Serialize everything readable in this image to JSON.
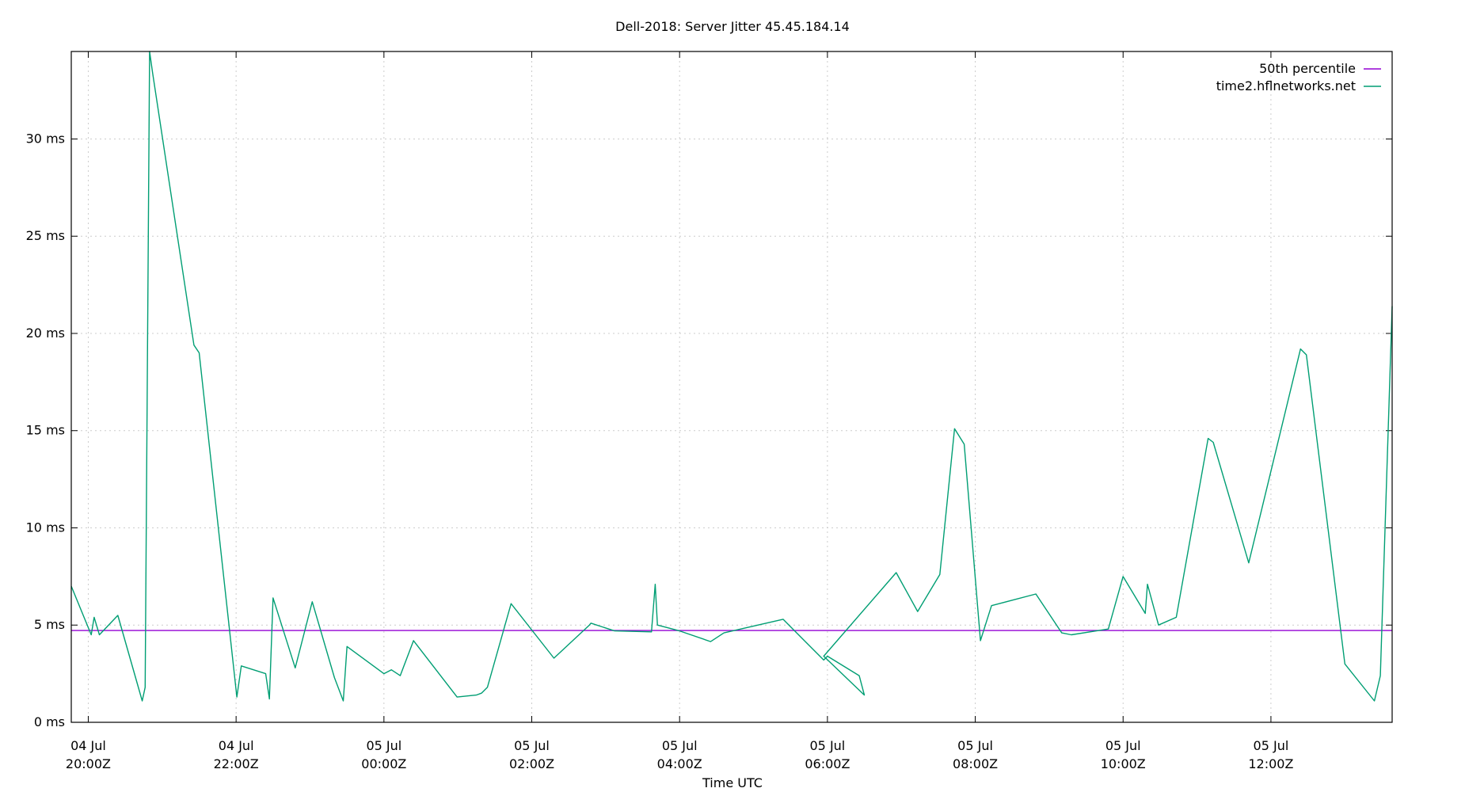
{
  "chart_data": {
    "type": "line",
    "title": "Dell-2018: Server Jitter 45.45.184.14",
    "xlabel": "Time UTC",
    "ylabel": "",
    "x_unit": "hours since 04 Jul 20:00Z",
    "xlim": [
      -0.23,
      17.64
    ],
    "ylim": [
      0,
      34.5
    ],
    "grid": true,
    "legend_position": "top-right",
    "y_ticks": [
      {
        "value": 0,
        "label": "0 ms"
      },
      {
        "value": 5,
        "label": "5 ms"
      },
      {
        "value": 10,
        "label": "10 ms"
      },
      {
        "value": 15,
        "label": "15 ms"
      },
      {
        "value": 20,
        "label": "20 ms"
      },
      {
        "value": 25,
        "label": "25 ms"
      },
      {
        "value": 30,
        "label": "30 ms"
      }
    ],
    "x_ticks": [
      {
        "value": 0,
        "line1": "04 Jul",
        "line2": "20:00Z"
      },
      {
        "value": 2,
        "line1": "04 Jul",
        "line2": "22:00Z"
      },
      {
        "value": 4,
        "line1": "05 Jul",
        "line2": "00:00Z"
      },
      {
        "value": 6,
        "line1": "05 Jul",
        "line2": "02:00Z"
      },
      {
        "value": 8,
        "line1": "05 Jul",
        "line2": "04:00Z"
      },
      {
        "value": 10,
        "line1": "05 Jul",
        "line2": "06:00Z"
      },
      {
        "value": 12,
        "line1": "05 Jul",
        "line2": "08:00Z"
      },
      {
        "value": 14,
        "line1": "05 Jul",
        "line2": "10:00Z"
      },
      {
        "value": 16,
        "line1": "05 Jul",
        "line2": "12:00Z"
      }
    ],
    "series": [
      {
        "name": "50th percentile",
        "color": "#9400d3",
        "x": [
          -0.23,
          17.64
        ],
        "y": [
          4.72,
          4.72
        ]
      },
      {
        "name": "time2.hflnetworks.net",
        "color": "#009e73",
        "x": [
          -0.23,
          0.04,
          0.08,
          0.15,
          0.4,
          0.73,
          0.77,
          0.83,
          0.87,
          1.43,
          1.5,
          2.01,
          2.07,
          2.4,
          2.45,
          2.5,
          2.8,
          3.03,
          3.33,
          3.45,
          3.5,
          4.0,
          4.1,
          4.22,
          4.4,
          4.99,
          5.25,
          5.32,
          5.4,
          5.72,
          6.3,
          6.78,
          6.8,
          7.12,
          7.62,
          7.67,
          7.7,
          8.0,
          8.42,
          8.6,
          9.4,
          9.95,
          10.0,
          10.43,
          10.5,
          9.95,
          10.93,
          11.22,
          11.52,
          11.72,
          11.85,
          12.07,
          12.22,
          12.82,
          13.17,
          13.3,
          13.8,
          14.0,
          14.3,
          14.33,
          14.48,
          14.72,
          15.15,
          15.22,
          15.7,
          16.4,
          16.48,
          17.0,
          17.4,
          17.48,
          17.64
        ],
        "y": [
          7.0,
          4.5,
          5.4,
          4.5,
          5.5,
          1.1,
          1.8,
          34.5,
          33.4,
          19.4,
          19.0,
          1.3,
          2.9,
          2.5,
          1.2,
          6.4,
          2.8,
          6.2,
          2.3,
          1.1,
          3.9,
          2.5,
          2.7,
          2.4,
          4.2,
          1.3,
          1.4,
          1.5,
          1.8,
          6.1,
          3.3,
          5.0,
          5.1,
          4.7,
          4.65,
          7.1,
          5.0,
          4.7,
          4.15,
          4.6,
          5.3,
          3.2,
          3.4,
          2.4,
          1.4,
          3.4,
          7.7,
          5.7,
          7.6,
          15.1,
          14.3,
          4.2,
          6.0,
          6.6,
          4.6,
          4.5,
          4.8,
          7.5,
          5.6,
          7.1,
          5.0,
          5.4,
          14.6,
          14.4,
          8.2,
          19.2,
          18.9,
          3.0,
          1.1,
          2.4,
          21.4
        ]
      }
    ]
  }
}
